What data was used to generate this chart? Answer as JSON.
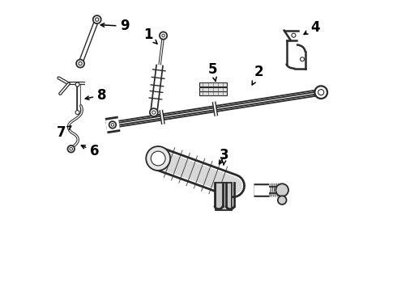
{
  "bg_color": "#ffffff",
  "line_color": "#2a2a2a",
  "label_color": "#000000",
  "figsize": [
    4.9,
    3.6
  ],
  "dpi": 100,
  "xlim": [
    0,
    10
  ],
  "ylim": [
    0,
    10
  ]
}
